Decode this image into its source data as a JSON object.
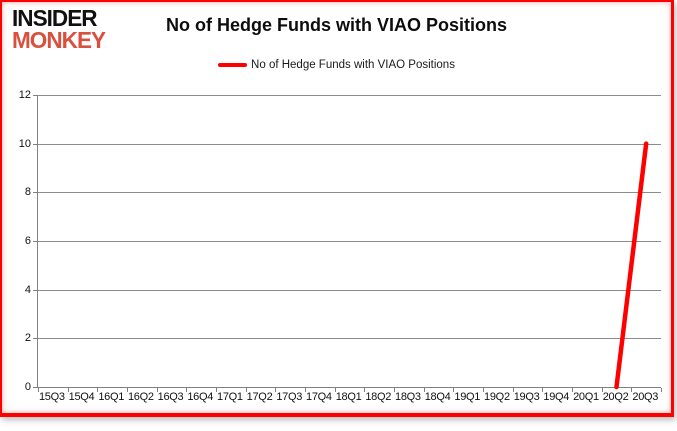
{
  "page": {
    "background_color": "#ffffff",
    "frame_border_color": "#ff0000"
  },
  "logo": {
    "line1": "INSIDER",
    "line2": "MONKEY",
    "line1_color": "#111111",
    "line2_color": "#d9503f"
  },
  "header": {
    "title": "No of Hedge Funds with VIAO Positions"
  },
  "legend": {
    "label": "No of Hedge Funds with VIAO Positions",
    "line_color": "#ff0000"
  },
  "chart_data": {
    "type": "line",
    "title": "No of Hedge Funds with VIAO Positions",
    "categories": [
      "15Q3",
      "15Q4",
      "16Q1",
      "16Q2",
      "16Q3",
      "16Q4",
      "17Q1",
      "17Q2",
      "17Q3",
      "17Q4",
      "18Q1",
      "18Q2",
      "18Q3",
      "18Q4",
      "19Q1",
      "19Q2",
      "19Q3",
      "19Q4",
      "20Q1",
      "20Q2",
      "20Q3"
    ],
    "series": [
      {
        "name": "No of Hedge Funds with VIAO Positions",
        "color": "#ff0000",
        "line_width": 4.5,
        "values": [
          null,
          null,
          null,
          null,
          null,
          null,
          null,
          null,
          null,
          null,
          null,
          null,
          null,
          null,
          null,
          null,
          null,
          null,
          null,
          0,
          10
        ]
      }
    ],
    "xlabel": "",
    "ylabel": "",
    "ylim": [
      0,
      12
    ],
    "yticks": [
      0,
      2,
      4,
      6,
      8,
      10,
      12
    ],
    "grid": true,
    "gridline_color": "#8c8c8c",
    "axis_color": "#808080",
    "legend_position": "top-center"
  }
}
